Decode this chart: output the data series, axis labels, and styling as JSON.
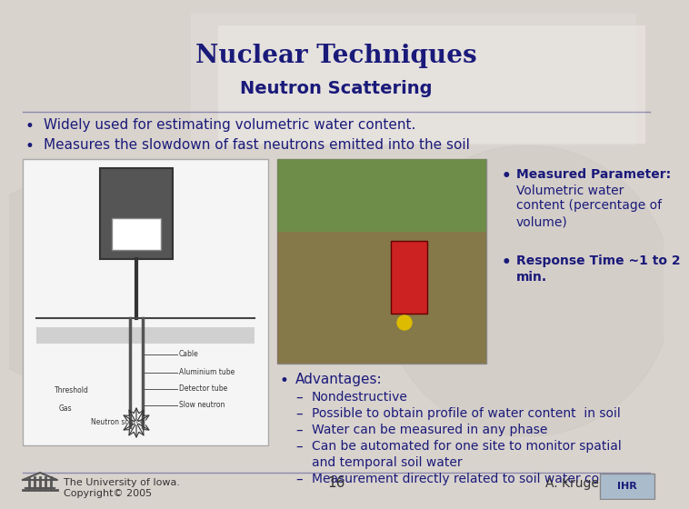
{
  "title": "Nuclear Techniques",
  "subtitle": "Neutron Scattering",
  "bullet1": "Widely used for estimating volumetric water content.",
  "bullet2": "Measures the slowdown of fast neutrons emitted into the soil",
  "param_bullet": "•",
  "param_header": "Measured Parameter:",
  "param_line1": "Volumetric water",
  "param_line2": "content (percentage of",
  "param_line3": "volume)",
  "response_bullet": "•",
  "response_text": "Response Time ~1 to 2\nmin.",
  "adv_header": "Advantages:",
  "advantages": [
    "Nondestructive",
    "Possible to obtain profile of water content  in soil",
    "Water can be measured in any phase",
    "Can be automated for one site to monitor spatial",
    "and temporal soil water",
    "Measurement directly related to soil water content"
  ],
  "adv_dashes": [
    true,
    true,
    true,
    true,
    false,
    true
  ],
  "footer_left1": "The University of Iowa.",
  "footer_left2": "Copyright© 2005",
  "footer_center": "16",
  "footer_right": "A. Kruger",
  "bg_color": "#d9d3ce",
  "title_color": "#1a1a7a",
  "text_color": "#1a1a7a",
  "deco_rect_color": "#e8e4e0",
  "img_left_color": "#f5f5f5",
  "img_photo_color": "#7a9a55"
}
